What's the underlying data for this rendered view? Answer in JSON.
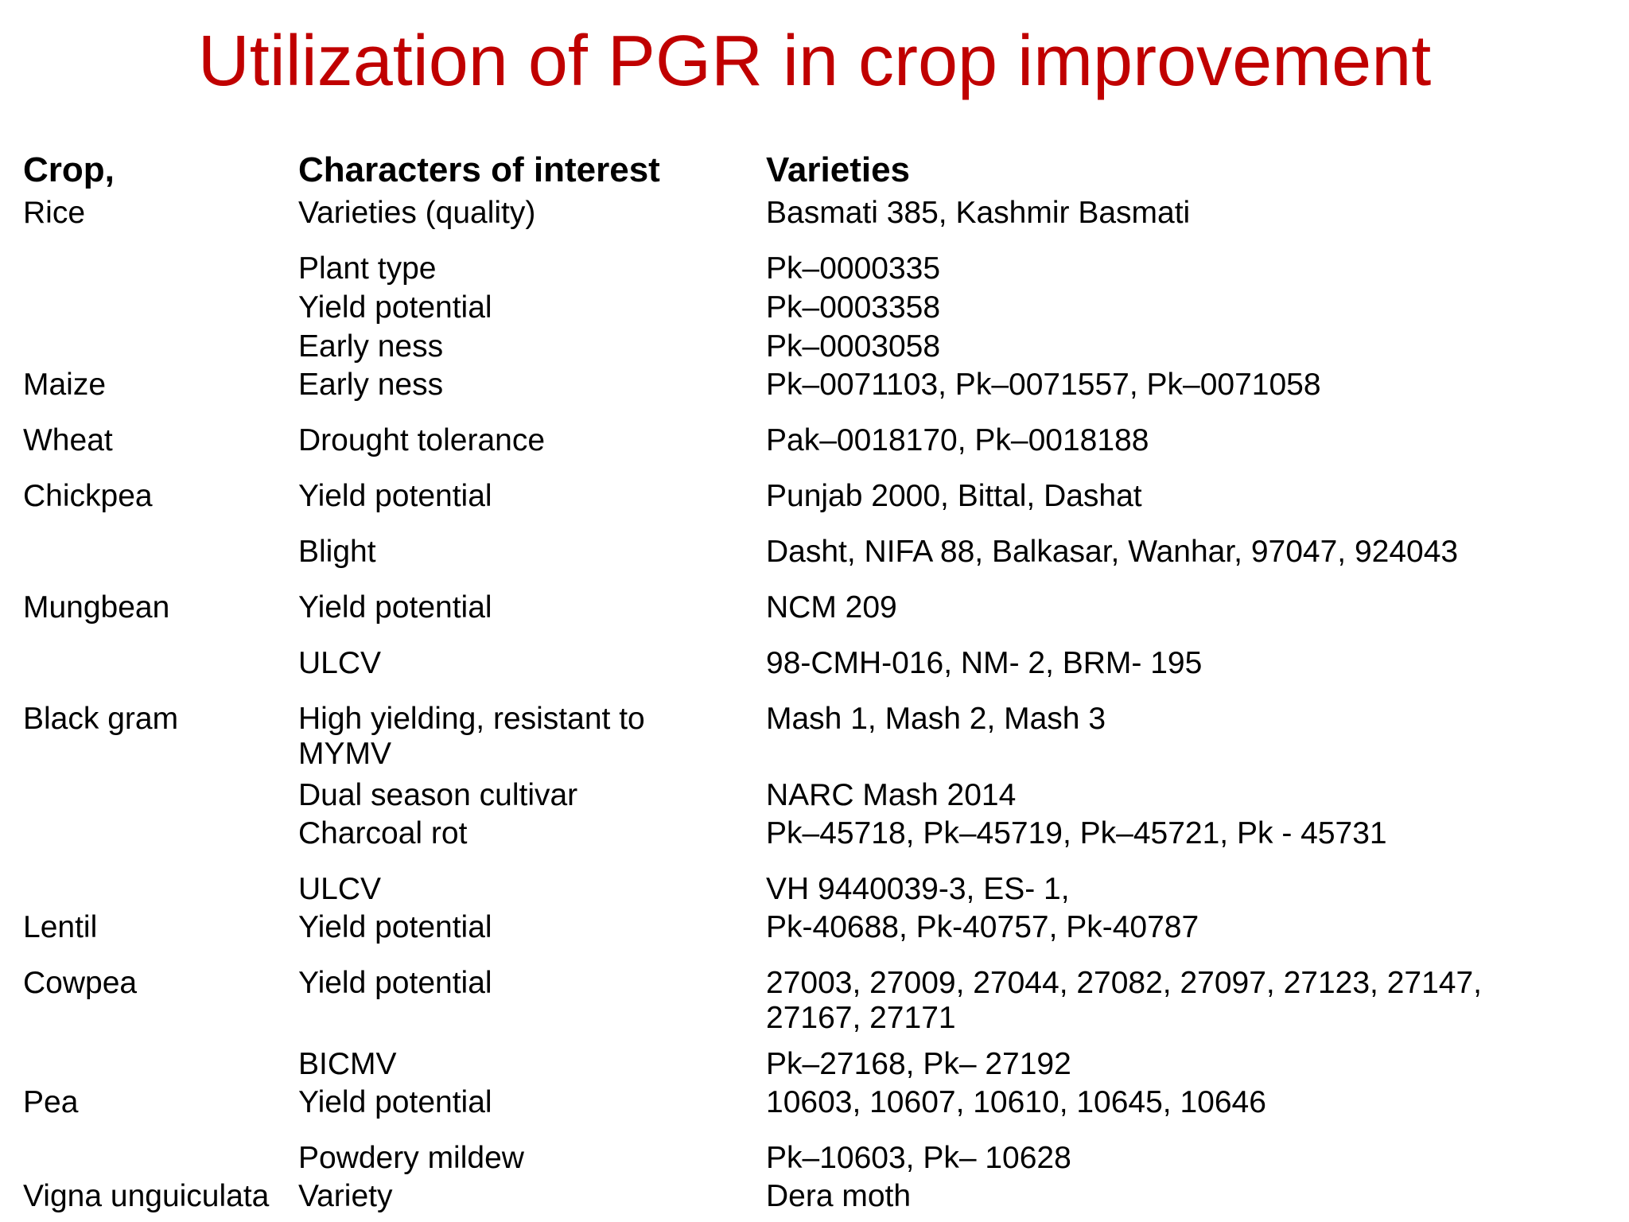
{
  "title": "Utilization of PGR in crop improvement",
  "title_color": "#c00000",
  "table": {
    "headers": {
      "crop": "Crop,",
      "characters": "Characters of interest",
      "varieties": "Varieties"
    },
    "rows": [
      {
        "crop": "Rice",
        "character": "Varieties (quality)",
        "varieties": "Basmati 385, Kashmir Basmati"
      },
      {
        "crop": "",
        "character": "Plant type",
        "varieties": "Pk–0000335"
      },
      {
        "crop": "",
        "character": "Yield potential",
        "varieties": "Pk–0003358"
      },
      {
        "crop": "",
        "character": "Early ness",
        "varieties": "Pk–0003058"
      },
      {
        "crop": "Maize",
        "character": "Early ness",
        "varieties": "Pk–0071103, Pk–0071557, Pk–0071058"
      },
      {
        "crop": "Wheat",
        "character": "Drought tolerance",
        "varieties": "Pak–0018170, Pk–0018188"
      },
      {
        "crop": "Chickpea",
        "character": "Yield potential",
        "varieties": "Punjab 2000, Bittal, Dashat"
      },
      {
        "crop": "",
        "character": "Blight",
        "varieties": "Dasht, NIFA 88, Balkasar, Wanhar, 97047, 924043"
      },
      {
        "crop": "Mungbean",
        "character": "Yield potential",
        "varieties": "NCM 209"
      },
      {
        "crop": "",
        "character": "ULCV",
        "varieties": "98-CMH-016, NM- 2, BRM- 195"
      },
      {
        "crop": "Black gram",
        "character": "High yielding, resistant to",
        "varieties": "Mash 1, Mash 2, Mash 3"
      },
      {
        "crop": "",
        "character": "MYMV",
        "varieties": ""
      },
      {
        "crop": "",
        "character": "Dual season cultivar",
        "varieties": "NARC Mash 2014"
      },
      {
        "crop": "",
        "character": "Charcoal rot",
        "varieties": "Pk–45718, Pk–45719, Pk–45721, Pk - 45731"
      },
      {
        "crop": "",
        "character": "ULCV",
        "varieties": "VH 9440039-3, ES- 1,"
      },
      {
        "crop": "Lentil",
        "character": "Yield potential",
        "varieties": "Pk-40688, Pk-40757, Pk-40787"
      },
      {
        "crop": "Cowpea",
        "character": "Yield potential",
        "varieties": "27003, 27009, 27044, 27082, 27097, 27123, 27147,"
      },
      {
        "crop": "",
        "character": "",
        "varieties": "27167, 27171"
      },
      {
        "crop": "",
        "character": "BICMV",
        "varieties": "Pk–27168, Pk– 27192"
      },
      {
        "crop": "Pea",
        "character": "Yield potential",
        "varieties": "10603, 10607, 10610, 10645, 10646"
      },
      {
        "crop": "",
        "character": "Powdery mildew",
        "varieties": "Pk–10603, Pk– 10628"
      },
      {
        "crop": "Vigna unguiculata",
        "character": "Variety",
        "varieties": "Dera moth"
      }
    ]
  }
}
